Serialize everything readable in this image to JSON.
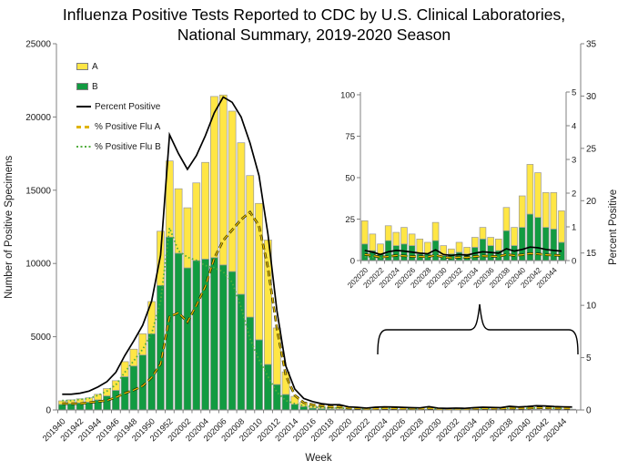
{
  "title": {
    "line1": "Influenza Positive Tests Reported to CDC by U.S. Clinical Laboratories,",
    "line2": "National Summary, 2019-2020 Season"
  },
  "legend": {
    "items": [
      {
        "label": "A",
        "swatch": "flu-a-box"
      },
      {
        "label": "B",
        "swatch": "flu-b-box"
      },
      {
        "label": "Percent Positive",
        "swatch": "black-solid-line"
      },
      {
        "label": "% Positive Flu A",
        "swatch": "yellow-dashed-line"
      },
      {
        "label": "% Positive Flu B",
        "swatch": "green-dotted-line"
      }
    ]
  },
  "axes": {
    "left_title": "Number of Positive Specimens",
    "right_title": "Percent Positive",
    "x_title": "Week"
  },
  "colors": {
    "flu_a": "#ffe645",
    "flu_b": "#129b41",
    "bar_border": "#999999",
    "percent_line": "#000000",
    "pct_a_dash_yellow": "#e8c000",
    "pct_a_dash_under": "#1a1a00",
    "pct_b_dot_green": "#52ae3e",
    "axis_line": "#808080"
  },
  "chart_data": {
    "type": "bar",
    "title": "Influenza Positive Tests Reported to CDC by U.S. Clinical Laboratories, National Summary, 2019-2020 Season",
    "xlabel": "Week",
    "ylabel_left": "Number of Positive Specimens",
    "ylabel_right": "Percent Positive",
    "legend_position": "top-left-inside",
    "grid": false,
    "main": {
      "ylim_left": [
        0,
        25000
      ],
      "left_ticks": [
        0,
        5000,
        10000,
        15000,
        20000,
        25000
      ],
      "ylim_right": [
        0,
        35
      ],
      "right_ticks": [
        0,
        5,
        10,
        15,
        20,
        25,
        30,
        35
      ],
      "x_label_every": 2
    },
    "inset": {
      "description": "magnified view of weeks 202020-202045",
      "ylim_left": [
        0,
        100
      ],
      "left_ticks": [
        0,
        25,
        50,
        75,
        100
      ],
      "ylim_right": [
        0,
        5
      ],
      "right_ticks": [
        0,
        1,
        2,
        3,
        4,
        5
      ],
      "first_week": "202020",
      "x_label_every": 2
    },
    "columns": [
      "week",
      "a_count",
      "b_count",
      "percent_positive",
      "percent_positive_a",
      "percent_positive_b"
    ],
    "weeks": [
      [
        "201940",
        240,
        380,
        1.5,
        0.6,
        0.9
      ],
      [
        "201941",
        260,
        430,
        1.5,
        0.6,
        0.9
      ],
      [
        "201942",
        280,
        480,
        1.6,
        0.6,
        1.0
      ],
      [
        "201943",
        300,
        530,
        1.8,
        0.7,
        1.1
      ],
      [
        "201944",
        380,
        690,
        2.2,
        0.8,
        1.4
      ],
      [
        "201945",
        500,
        960,
        2.7,
        0.9,
        1.8
      ],
      [
        "201946",
        660,
        1340,
        3.6,
        1.2,
        2.4
      ],
      [
        "201947",
        1030,
        2270,
        5.2,
        1.6,
        3.6
      ],
      [
        "201948",
        1150,
        3000,
        6.6,
        1.9,
        4.7
      ],
      [
        "201949",
        1450,
        3750,
        8.1,
        2.3,
        5.8
      ],
      [
        "201950",
        2200,
        5200,
        10.4,
        3.1,
        7.3
      ],
      [
        "201951",
        3700,
        8500,
        14.8,
        4.4,
        10.4
      ],
      [
        "201952",
        5200,
        11800,
        26.3,
        8.9,
        17.4
      ],
      [
        "202001",
        4400,
        10700,
        24.5,
        9.3,
        15.2
      ],
      [
        "202002",
        4100,
        9700,
        23.0,
        8.4,
        14.6
      ],
      [
        "202003",
        5300,
        10200,
        24.3,
        10.0,
        14.3
      ],
      [
        "202004",
        6600,
        10300,
        26.2,
        11.8,
        13.8
      ],
      [
        "202005",
        11000,
        10400,
        28.4,
        14.5,
        13.6
      ],
      [
        "202006",
        11600,
        9900,
        29.9,
        16.2,
        13.2
      ],
      [
        "202007",
        10950,
        9450,
        29.4,
        17.2,
        12.2
      ],
      [
        "202008",
        10340,
        7900,
        28.0,
        18.2,
        9.8
      ],
      [
        "202009",
        9660,
        6340,
        25.5,
        18.9,
        6.8
      ],
      [
        "202010",
        9310,
        4790,
        22.4,
        17.6,
        4.8
      ],
      [
        "202011",
        8490,
        3110,
        16.8,
        13.6,
        3.2
      ],
      [
        "202012",
        3860,
        1740,
        9.5,
        7.8,
        1.7
      ],
      [
        "202013",
        1540,
        1060,
        4.2,
        3.3,
        0.9
      ],
      [
        "202014",
        540,
        390,
        2.0,
        1.4,
        0.6
      ],
      [
        "202015",
        290,
        230,
        1.1,
        0.7,
        0.4
      ],
      [
        "202016",
        170,
        130,
        0.8,
        0.5,
        0.3
      ],
      [
        "202017",
        130,
        90,
        0.6,
        0.4,
        0.2
      ],
      [
        "202018",
        110,
        70,
        0.5,
        0.3,
        0.2
      ],
      [
        "202019",
        90,
        60,
        0.5,
        0.3,
        0.2
      ],
      [
        "202020",
        14,
        10,
        0.3,
        0.18,
        0.12
      ],
      [
        "202021",
        10,
        6,
        0.25,
        0.15,
        0.1
      ],
      [
        "202022",
        6,
        4,
        0.18,
        0.1,
        0.08
      ],
      [
        "202023",
        9,
        12,
        0.26,
        0.12,
        0.14
      ],
      [
        "202024",
        8,
        9,
        0.3,
        0.15,
        0.15
      ],
      [
        "202025",
        10,
        10,
        0.28,
        0.14,
        0.14
      ],
      [
        "202026",
        7,
        9,
        0.25,
        0.12,
        0.13
      ],
      [
        "202027",
        9,
        4,
        0.22,
        0.12,
        0.1
      ],
      [
        "202028",
        7,
        4,
        0.2,
        0.11,
        0.09
      ],
      [
        "202029",
        11,
        12,
        0.32,
        0.16,
        0.16
      ],
      [
        "202030",
        6,
        3,
        0.18,
        0.1,
        0.08
      ],
      [
        "202031",
        3,
        4,
        0.15,
        0.08,
        0.07
      ],
      [
        "202032",
        6,
        5,
        0.18,
        0.1,
        0.08
      ],
      [
        "202033",
        4,
        4,
        0.16,
        0.09,
        0.07
      ],
      [
        "202034",
        6,
        8,
        0.22,
        0.12,
        0.1
      ],
      [
        "202035",
        7,
        13,
        0.26,
        0.14,
        0.12
      ],
      [
        "202036",
        5,
        9,
        0.24,
        0.13,
        0.11
      ],
      [
        "202037",
        7,
        6,
        0.22,
        0.12,
        0.1
      ],
      [
        "202038",
        14,
        18,
        0.35,
        0.18,
        0.17
      ],
      [
        "202039",
        11,
        9,
        0.28,
        0.15,
        0.13
      ],
      [
        "202040",
        19,
        20,
        0.33,
        0.17,
        0.16
      ],
      [
        "202041",
        30,
        28,
        0.4,
        0.21,
        0.19
      ],
      [
        "202042",
        27,
        26,
        0.38,
        0.2,
        0.18
      ],
      [
        "202043",
        21,
        20,
        0.33,
        0.17,
        0.16
      ],
      [
        "202044",
        22,
        19,
        0.3,
        0.16,
        0.14
      ],
      [
        "202045",
        19,
        11,
        0.28,
        0.15,
        0.13
      ]
    ]
  }
}
